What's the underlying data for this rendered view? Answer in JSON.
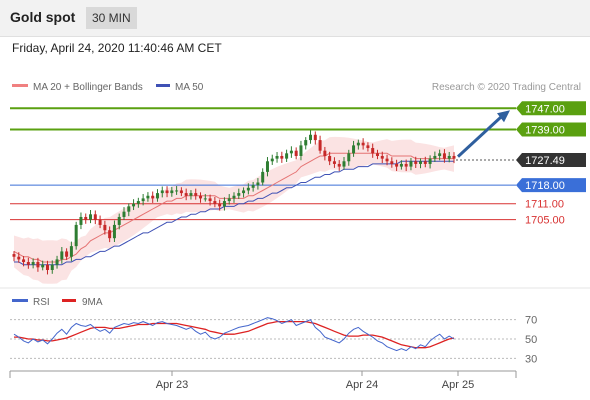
{
  "header": {
    "title": "Gold spot",
    "timeframe": "30 MIN",
    "datetime": "Friday, April 24, 2020 11:40:46 AM CET"
  },
  "legend": {
    "ma20": "MA 20 + Bollinger Bands",
    "ma50": "MA 50",
    "credit": "Research © 2020 Trading Central",
    "rsi": "RSI",
    "rsi_ma": "9MA"
  },
  "colors": {
    "up_candle": "#2e7d32",
    "down_candle": "#c62828",
    "ma20": "#e57373",
    "ma50": "#3f51b5",
    "band_fill": "#fadada",
    "target_green": "#5aa010",
    "support_blue": "#3a6fd8",
    "support_red": "#d83232",
    "current": "#333333",
    "arrow": "#2f5f9e",
    "rsi": "#4466cc",
    "rsi_ma": "#dd2222"
  },
  "chart_data": [
    {
      "type": "candlestick",
      "title": "Gold spot",
      "timeframe": "30 MIN",
      "x_tick_labels": [
        "Apr 23",
        "Apr 24",
        "Apr 25"
      ],
      "ylim": [
        1686,
        1752
      ],
      "current_price": 1727.49,
      "levels": [
        {
          "label": "1747.00",
          "value": 1747.0,
          "kind": "target",
          "color": "#5aa010"
        },
        {
          "label": "1739.00",
          "value": 1739.0,
          "kind": "target",
          "color": "#5aa010"
        },
        {
          "label": "1727.49",
          "value": 1727.49,
          "kind": "current",
          "color": "#333333"
        },
        {
          "label": "1718.00",
          "value": 1718.0,
          "kind": "support",
          "color": "#3a6fd8"
        },
        {
          "label": "1711.00",
          "value": 1711.0,
          "kind": "support",
          "color": "#d83232"
        },
        {
          "label": "1705.00",
          "value": 1705.0,
          "kind": "support",
          "color": "#d83232"
        }
      ],
      "candles_close": [
        1691,
        1690,
        1689,
        1688,
        1689,
        1687,
        1688,
        1686,
        1688,
        1690,
        1693,
        1691,
        1695,
        1703,
        1706,
        1705,
        1707,
        1705,
        1703,
        1701,
        1698,
        1703,
        1706,
        1708,
        1710,
        1711,
        1712,
        1713,
        1714,
        1713,
        1715,
        1716,
        1715,
        1716,
        1716,
        1715,
        1714,
        1715,
        1714,
        1713,
        1713,
        1712,
        1711,
        1710,
        1712,
        1713,
        1714,
        1715,
        1716,
        1717,
        1718,
        1719,
        1723,
        1727,
        1728,
        1729,
        1728,
        1730,
        1731,
        1729,
        1733,
        1735,
        1737,
        1735,
        1731,
        1729,
        1727,
        1726,
        1725,
        1727,
        1730,
        1733,
        1734,
        1733,
        1732,
        1730,
        1729,
        1728,
        1727,
        1726,
        1725,
        1726,
        1725,
        1727,
        1726,
        1727,
        1726,
        1728,
        1729,
        1730,
        1728,
        1729,
        1728
      ],
      "series": [
        {
          "name": "MA 20",
          "values": [
            1693,
            1692,
            1691,
            1691,
            1690,
            1690,
            1689,
            1689,
            1689,
            1689,
            1690,
            1690,
            1691,
            1692,
            1694,
            1695,
            1697,
            1698,
            1699,
            1700,
            1700,
            1701,
            1702,
            1703,
            1704,
            1705,
            1706,
            1707,
            1708,
            1709,
            1710,
            1711,
            1712,
            1712,
            1713,
            1713,
            1714,
            1714,
            1714,
            1714,
            1714,
            1714,
            1714,
            1713,
            1713,
            1713,
            1713,
            1713,
            1713,
            1714,
            1714,
            1715,
            1716,
            1717,
            1718,
            1719,
            1720,
            1721,
            1722,
            1723,
            1725,
            1726,
            1727,
            1728,
            1729,
            1729,
            1730,
            1730,
            1730,
            1730,
            1730,
            1730,
            1730,
            1730,
            1730,
            1730,
            1730,
            1730,
            1730,
            1729,
            1729,
            1729,
            1729,
            1729,
            1728,
            1728,
            1728,
            1728,
            1728,
            1728,
            1728,
            1728,
            1728
          ]
        },
        {
          "name": "MA 50",
          "values": [
            1689,
            1689,
            1688,
            1688,
            1688,
            1688,
            1688,
            1688,
            1688,
            1688,
            1688,
            1689,
            1689,
            1690,
            1690,
            1691,
            1691,
            1692,
            1693,
            1693,
            1694,
            1695,
            1695,
            1696,
            1697,
            1698,
            1699,
            1700,
            1700,
            1701,
            1702,
            1703,
            1704,
            1704,
            1705,
            1706,
            1706,
            1707,
            1707,
            1708,
            1708,
            1709,
            1709,
            1709,
            1710,
            1710,
            1710,
            1711,
            1711,
            1712,
            1712,
            1713,
            1713,
            1714,
            1715,
            1715,
            1716,
            1717,
            1717,
            1718,
            1719,
            1719,
            1720,
            1721,
            1721,
            1722,
            1722,
            1723,
            1723,
            1724,
            1724,
            1724,
            1725,
            1725,
            1725,
            1726,
            1726,
            1726,
            1726,
            1726,
            1726,
            1727,
            1727,
            1727,
            1727,
            1727,
            1727,
            1727,
            1727,
            1727,
            1727,
            1727,
            1727
          ]
        }
      ]
    },
    {
      "type": "line",
      "title": "RSI",
      "ylim": [
        20,
        80
      ],
      "y_ticks": [
        30,
        50,
        70
      ],
      "series": [
        {
          "name": "RSI",
          "values": [
            55,
            52,
            48,
            46,
            50,
            47,
            49,
            45,
            50,
            56,
            60,
            55,
            62,
            66,
            64,
            63,
            65,
            61,
            58,
            60,
            56,
            62,
            64,
            66,
            65,
            67,
            66,
            68,
            66,
            64,
            67,
            68,
            66,
            65,
            64,
            62,
            60,
            62,
            58,
            55,
            57,
            52,
            50,
            52,
            56,
            58,
            60,
            62,
            63,
            64,
            66,
            68,
            70,
            72,
            71,
            69,
            66,
            68,
            70,
            64,
            66,
            68,
            70,
            62,
            58,
            52,
            50,
            48,
            46,
            50,
            56,
            60,
            62,
            58,
            55,
            52,
            48,
            46,
            42,
            40,
            38,
            40,
            38,
            42,
            40,
            44,
            42,
            48,
            52,
            55,
            50,
            53,
            50
          ]
        },
        {
          "name": "9MA",
          "values": [
            52,
            52,
            51,
            50,
            50,
            49,
            49,
            48,
            48,
            49,
            50,
            51,
            53,
            55,
            57,
            59,
            61,
            62,
            62,
            62,
            61,
            61,
            61,
            62,
            63,
            64,
            65,
            65,
            65,
            66,
            66,
            66,
            66,
            66,
            66,
            65,
            64,
            63,
            62,
            61,
            60,
            58,
            57,
            56,
            55,
            55,
            55,
            56,
            57,
            58,
            60,
            62,
            64,
            66,
            67,
            68,
            68,
            68,
            68,
            68,
            68,
            68,
            67,
            66,
            64,
            62,
            60,
            58,
            56,
            54,
            53,
            53,
            53,
            54,
            54,
            54,
            53,
            52,
            50,
            48,
            46,
            44,
            43,
            42,
            41,
            41,
            41,
            42,
            44,
            46,
            48,
            50,
            51
          ]
        }
      ]
    }
  ]
}
